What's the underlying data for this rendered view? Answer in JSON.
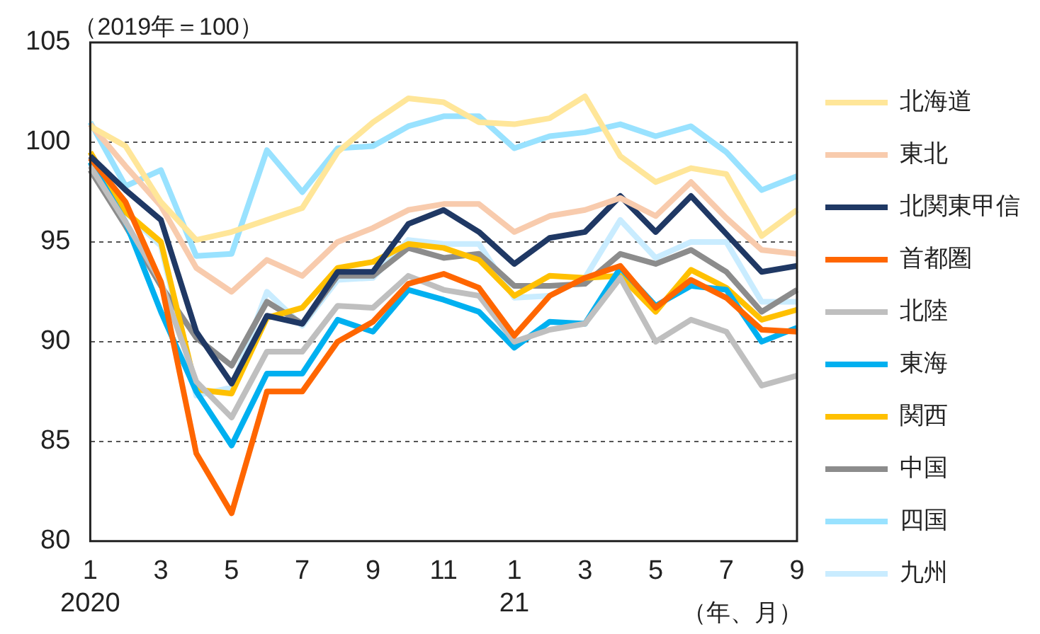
{
  "chart_data": {
    "type": "line",
    "ylabel": "（2019年＝100）",
    "xlabel": "（年、月）",
    "categories": [
      "1\n2020",
      null,
      "3",
      null,
      "5",
      null,
      "7",
      null,
      "9",
      null,
      "11",
      null,
      "1\n21",
      null,
      "3",
      null,
      "5",
      null,
      "7",
      null,
      "9"
    ],
    "ylim": [
      80,
      105
    ],
    "yticks": [
      80,
      85,
      90,
      95,
      100,
      105
    ],
    "grid": "y",
    "legend": "right",
    "marker": "none",
    "line_style": "solid",
    "series": [
      {
        "name": "北海道",
        "color": "#ffe699",
        "values": [
          100.8,
          99.8,
          97,
          95.1,
          95.5,
          96.1,
          96.7,
          99.5,
          101,
          102.2,
          102,
          101,
          100.9,
          101.2,
          102.3,
          99.3,
          98,
          98.7,
          98.4,
          95.3,
          96.6
        ]
      },
      {
        "name": "東北",
        "color": "#f8cbad",
        "values": [
          100.9,
          98.8,
          96.8,
          93.7,
          92.5,
          94.1,
          93.3,
          95,
          95.7,
          96.6,
          96.9,
          96.9,
          95.5,
          96.3,
          96.6,
          97.2,
          96.3,
          98,
          96.2,
          94.6,
          94.4
        ]
      },
      {
        "name": "北関東甲信",
        "color": "#1f3864",
        "values": [
          99.3,
          97.6,
          96.1,
          90.5,
          87.9,
          91.3,
          90.9,
          93.5,
          93.5,
          95.9,
          96.6,
          95.5,
          93.9,
          95.2,
          95.5,
          97.3,
          95.5,
          97.3,
          95.4,
          93.5,
          93.8
        ]
      },
      {
        "name": "首都圏",
        "color": "#ff6600",
        "values": [
          99.2,
          97,
          93,
          84.4,
          81.4,
          87.5,
          87.5,
          90,
          91,
          92.9,
          93.4,
          92.7,
          90.3,
          92.3,
          93.2,
          93.8,
          91.7,
          93.1,
          92.2,
          90.6,
          90.5
        ]
      },
      {
        "name": "北陸",
        "color": "#bfbfbf",
        "values": [
          98.8,
          96,
          93,
          88,
          86.2,
          89.5,
          89.5,
          91.8,
          91.7,
          93.3,
          92.6,
          92.3,
          90,
          90.6,
          90.9,
          93.2,
          90,
          91.1,
          90.5,
          87.8,
          88.3
        ]
      },
      {
        "name": "東海",
        "color": "#00b0f0",
        "values": [
          99,
          96,
          91.5,
          87.5,
          84.8,
          88.4,
          88.4,
          91.1,
          90.5,
          92.6,
          92.1,
          91.5,
          89.7,
          91,
          90.9,
          93.7,
          91.8,
          92.8,
          92.6,
          90,
          90.7
        ]
      },
      {
        "name": "関西",
        "color": "#ffc000",
        "values": [
          99.5,
          96.5,
          95,
          87.6,
          87.4,
          91.2,
          91.7,
          93.7,
          94,
          94.9,
          94.7,
          94.1,
          92.3,
          93.3,
          93.2,
          93.3,
          91.5,
          93.6,
          92.7,
          91.1,
          91.6
        ]
      },
      {
        "name": "中国",
        "color": "#8c8c8c",
        "values": [
          98.6,
          95.8,
          92.8,
          90.2,
          88.8,
          92,
          90.9,
          93.3,
          93.3,
          94.7,
          94.2,
          94.4,
          92.8,
          92.8,
          92.9,
          94.4,
          93.9,
          94.6,
          93.5,
          91.5,
          92.6
        ]
      },
      {
        "name": "四国",
        "color": "#99e2ff",
        "values": [
          101,
          97.8,
          98.6,
          94.3,
          94.4,
          99.6,
          97.5,
          99.7,
          99.8,
          100.8,
          101.3,
          101.3,
          99.7,
          100.3,
          100.5,
          100.9,
          100.3,
          100.8,
          99.5,
          97.6,
          98.3
        ]
      },
      {
        "name": "九州",
        "color": "#c9ecff",
        "values": [
          98.9,
          96.5,
          94.8,
          87.3,
          87.7,
          92.5,
          90.8,
          93.1,
          93.2,
          95.1,
          94.9,
          94.9,
          92.2,
          92.3,
          93.2,
          96.1,
          94.2,
          95,
          95,
          92,
          92
        ]
      }
    ]
  }
}
